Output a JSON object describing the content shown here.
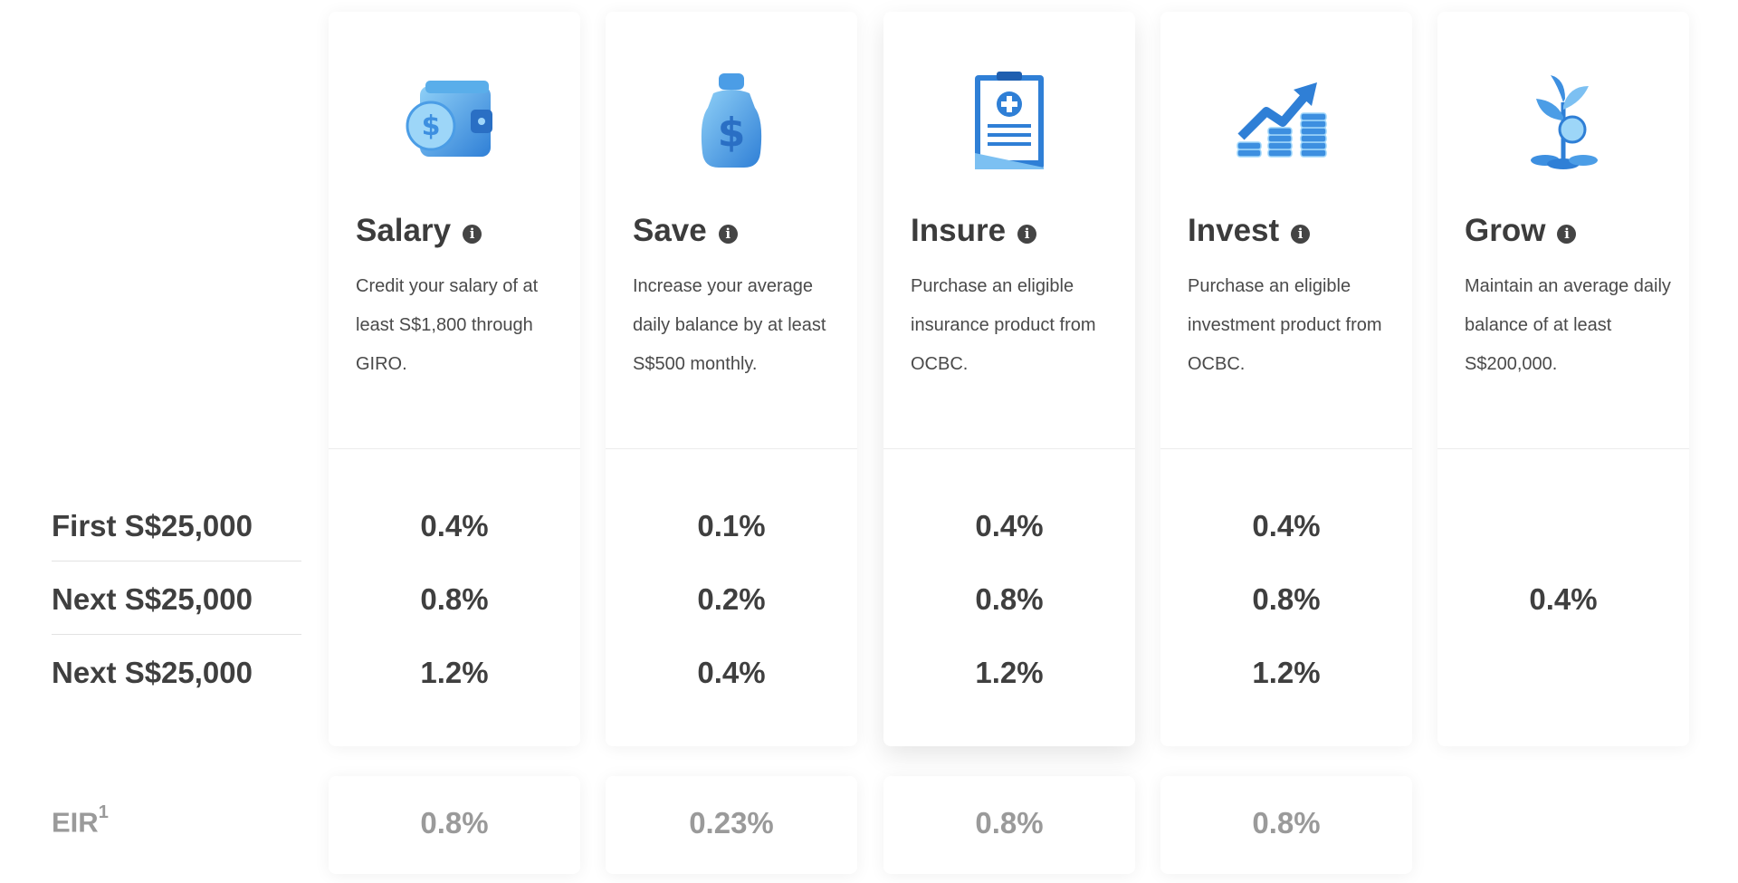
{
  "tiers": {
    "first": "First S$25,000",
    "next1": "Next S$25,000",
    "next2": "Next S$25,000"
  },
  "eir_label": "EIR",
  "eir_sup": "1",
  "info_glyph": "i",
  "categories": [
    {
      "title": "Salary",
      "icon": "wallet-icon",
      "desc": "Credit your salary of at least S$1,800 through GIRO.",
      "rates": [
        "0.4%",
        "0.8%",
        "1.2%"
      ],
      "eir": "0.8%"
    },
    {
      "title": "Save",
      "icon": "money-jar-icon",
      "desc": "Increase your average daily balance by at least S$500 monthly.",
      "rates": [
        "0.1%",
        "0.2%",
        "0.4%"
      ],
      "eir": "0.23%"
    },
    {
      "title": "Insure",
      "icon": "insurance-document-icon",
      "desc": "Purchase an eligible insurance product from OCBC.",
      "rates": [
        "0.4%",
        "0.8%",
        "1.2%"
      ],
      "eir": "0.8%"
    },
    {
      "title": "Invest",
      "icon": "investment-growth-icon",
      "desc": "Purchase an eligible investment product from OCBC.",
      "rates": [
        "0.4%",
        "0.8%",
        "1.2%"
      ],
      "eir": "0.8%"
    },
    {
      "title": "Grow",
      "icon": "plant-coins-icon",
      "desc": "Maintain an average daily balance of at least S$200,000.",
      "rate_single": "0.4%"
    }
  ],
  "colors": {
    "icon_blue": "#3d8fe0",
    "icon_light": "#7cc0f2",
    "icon_dark": "#1f5fb0",
    "text": "#3c3c3c",
    "muted": "#9a9a9a"
  }
}
